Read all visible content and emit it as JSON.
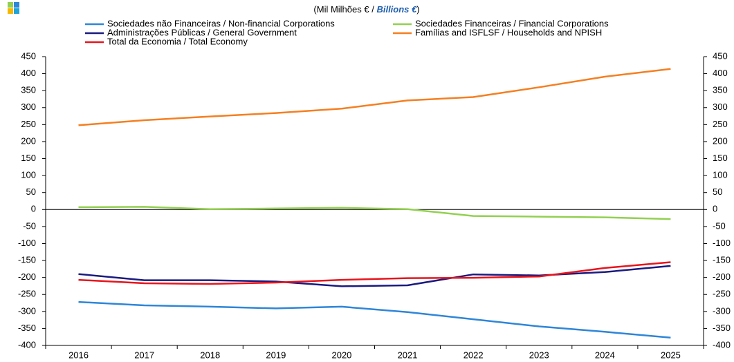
{
  "chart_data": {
    "type": "line",
    "subtitle": [
      "(Mil Milhões € /",
      "Billions €",
      ")"
    ],
    "categories": [
      "2016",
      "2017",
      "2018",
      "2019",
      "2020",
      "2021",
      "2022",
      "2023",
      "2024",
      "2025"
    ],
    "series": [
      {
        "name": "Sociedades não Financeiras / Non-financial Corporations",
        "color": "#2e86d8",
        "values": [
          -272,
          -282,
          -286,
          -291,
          -286,
          -302,
          -323,
          -344,
          -360,
          -377
        ]
      },
      {
        "name": "Sociedades Financeiras / Financial Corporations",
        "color": "#92d050",
        "values": [
          7,
          8,
          1,
          3,
          5,
          1,
          -19,
          -21,
          -23,
          -28
        ]
      },
      {
        "name": "Administrações Públicas / General Government",
        "color": "#1a1a80",
        "values": [
          -190,
          -208,
          -208,
          -212,
          -226,
          -223,
          -191,
          -194,
          -184,
          -166
        ]
      },
      {
        "name": "Famílias and ISFLSF / Households and NPISH",
        "color": "#f57f20",
        "values": [
          248,
          263,
          274,
          284,
          297,
          321,
          331,
          360,
          391,
          414
        ]
      },
      {
        "name": "Total da Economia / Total Economy",
        "color": "#e8141c",
        "values": [
          -207,
          -217,
          -219,
          -215,
          -207,
          -202,
          -201,
          -197,
          -172,
          -155
        ]
      }
    ],
    "ylim": [
      -400,
      450
    ],
    "yticks": [
      -400,
      -350,
      -300,
      -250,
      -200,
      -150,
      -100,
      -50,
      0,
      50,
      100,
      150,
      200,
      250,
      300,
      350,
      400,
      450
    ],
    "y2lim": [
      -400,
      450
    ],
    "y2ticks": [
      -400,
      -350,
      -300,
      -250,
      -200,
      -150,
      -100,
      -50,
      0,
      50,
      100,
      150,
      200,
      250,
      300,
      350,
      400,
      450
    ]
  }
}
